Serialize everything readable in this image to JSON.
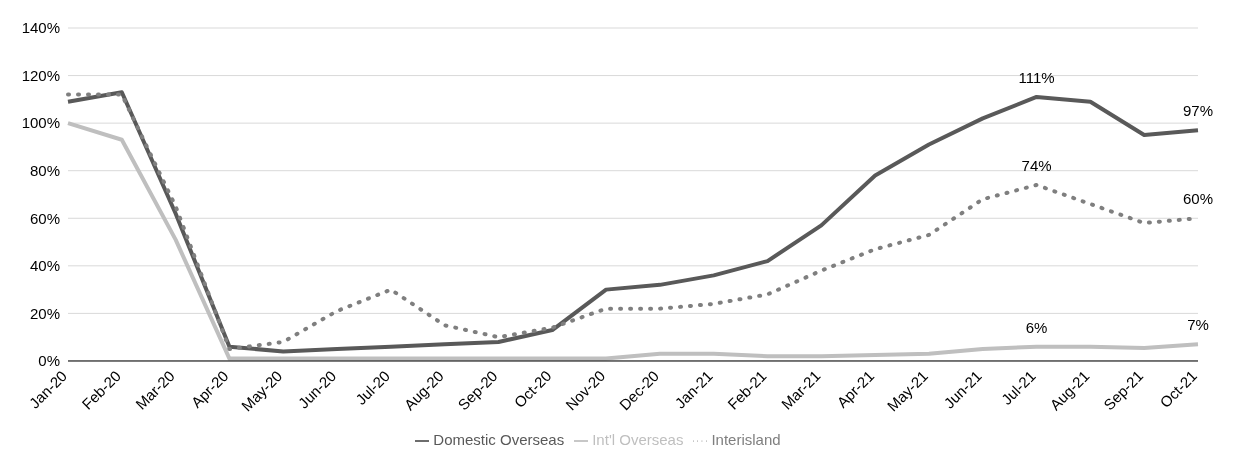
{
  "chart_data": {
    "type": "line",
    "categories": [
      "Jan-20",
      "Feb-20",
      "Mar-20",
      "Apr-20",
      "May-20",
      "Jun-20",
      "Jul-20",
      "Aug-20",
      "Sep-20",
      "Oct-20",
      "Nov-20",
      "Dec-20",
      "Jan-21",
      "Feb-21",
      "Mar-21",
      "Apr-21",
      "May-21",
      "Jun-21",
      "Jul-21",
      "Aug-21",
      "Sep-21",
      "Oct-21"
    ],
    "series": [
      {
        "name": "Domestic Overseas",
        "color": "#595959",
        "line_style": "solid",
        "values": [
          109,
          113,
          62,
          6,
          4,
          5,
          6,
          7,
          8,
          13,
          30,
          32,
          36,
          42,
          57,
          78,
          91,
          102,
          111,
          109,
          95,
          97
        ],
        "value_labels": [
          null,
          null,
          null,
          null,
          null,
          null,
          null,
          null,
          null,
          null,
          null,
          null,
          null,
          null,
          null,
          null,
          null,
          null,
          "111%",
          null,
          null,
          "97%"
        ]
      },
      {
        "name": "Int'l Overseas",
        "color": "#bfbfbf",
        "line_style": "solid",
        "values": [
          100,
          93,
          51,
          1,
          1,
          1,
          1,
          1,
          1,
          1,
          1,
          3,
          3,
          2,
          2,
          2.5,
          3,
          5,
          6,
          6,
          5.5,
          7
        ],
        "value_labels": [
          null,
          null,
          null,
          null,
          null,
          null,
          null,
          null,
          null,
          null,
          null,
          null,
          null,
          null,
          null,
          null,
          null,
          null,
          "6%",
          null,
          null,
          "7%"
        ]
      },
      {
        "name": "Interisland",
        "color": "#7f7f7f",
        "line_style": "dotted",
        "values": [
          112,
          112,
          65,
          5,
          8,
          21,
          30,
          15,
          10,
          14,
          22,
          22,
          24,
          28,
          38,
          47,
          53,
          68,
          74,
          66,
          58,
          60
        ],
        "value_labels": [
          null,
          null,
          null,
          null,
          null,
          null,
          null,
          null,
          null,
          null,
          null,
          null,
          null,
          null,
          null,
          null,
          null,
          null,
          "74%",
          null,
          null,
          "60%"
        ]
      }
    ],
    "ylim": [
      0,
      140
    ],
    "yticks": [
      {
        "value": 0,
        "label": "0%"
      },
      {
        "value": 20,
        "label": "20%"
      },
      {
        "value": 40,
        "label": "40%"
      },
      {
        "value": 60,
        "label": "60%"
      },
      {
        "value": 80,
        "label": "80%"
      },
      {
        "value": 100,
        "label": "100%"
      },
      {
        "value": 120,
        "label": "120%"
      },
      {
        "value": 140,
        "label": "140%"
      }
    ],
    "grid": "y",
    "legend": "bottom",
    "marker": "none"
  }
}
